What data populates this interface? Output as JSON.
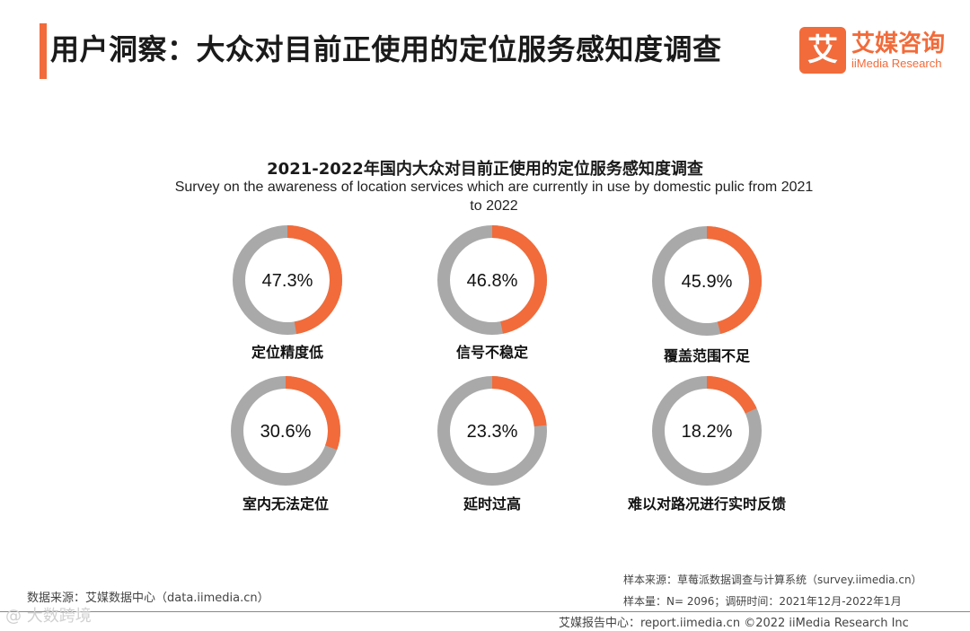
{
  "header": {
    "title": "用户洞察：大众对目前正使用的定位服务感知度调查",
    "logo_mark": "艾",
    "logo_cn": "艾媒咨询",
    "logo_en": "iiMedia Research"
  },
  "chart_data": {
    "type": "donut",
    "title": "2021-2022年国内大众对目前正使用的定位服务感知度调查",
    "subtitle": "Survey on the awareness of location services which are currently in use by domestic pulic from 2021 to 2022",
    "unit": "%",
    "categories": [
      "定位精度低",
      "信号不稳定",
      "覆盖范围不足",
      "室内无法定位",
      "延时过高",
      "难以对路况进行实时反馈"
    ],
    "values": [
      47.3,
      46.8,
      45.9,
      30.6,
      23.3,
      18.2
    ],
    "value_labels": [
      "47.3%",
      "46.8%",
      "45.9%",
      "30.6%",
      "23.3%",
      "18.2%"
    ],
    "colors": {
      "value": "#f26b3a",
      "remainder": "#a9a9a9"
    }
  },
  "footer": {
    "data_source": "数据来源：艾媒数据中心（data.iimedia.cn）",
    "sample_source": "样本来源：草莓派数据调查与计算系统（survey.iimedia.cn）",
    "sample_size": "样本量：N= 2096；调研时间：2021年12月-2022年1月",
    "report_center": "艾媒报告中心：report.iimedia.cn    ©2022  iiMedia Research  Inc",
    "watermark": "@ 大数跨境"
  }
}
